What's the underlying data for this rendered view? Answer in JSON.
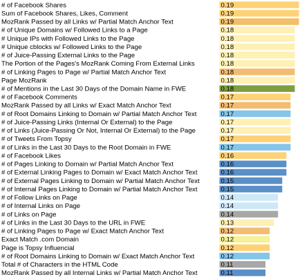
{
  "chart_data": {
    "type": "bar",
    "orientation": "horizontal",
    "title": "",
    "xlabel": "",
    "ylabel": "",
    "xlim": [
      0,
      0.19
    ],
    "grid": false,
    "legend": "none",
    "show_values": true,
    "value_decimals": 2,
    "categories": [
      "# of Facebook Shares",
      "Sum of Facebook Shares, Likes, Comment",
      "MozRank Passed by all Links w/ Partial Match Anchor Text",
      "# of Unique Domains w/ Followed Links to a Page",
      "# Unique IPs with Followed Links to the Page",
      "# Unique cblocks w/ Followed Links to the Page",
      "# of Juice-Passing External Links to the Page",
      "The Portion of the Pages's MozRank Coming From External Links",
      "# of Linking Pages to Page w/ Partial Match Anchor Text",
      "Page MozRank",
      "# of Mentions in the Last 30 Days of the Domain Name in FWE",
      "# of Facebook Comments",
      "MozRank Passed by all Links w/ Exact Match Anchor Text",
      "# of Root Domains Linking to Domain w/ Partial Match Anchor Text",
      "# of Juice-Passing Links (Internal Or External) to the Page",
      "# of Links (Juice-Passing Or Not, Internal Or External) to the Page",
      "# of Tweets From Topsy",
      "# of Links in the Last 30 Days to the Root Domain in FWE",
      "# of Facebook Likes",
      "# of Pages Linking to Domain w/ Partial Match Anchor Text",
      "# of External Linking Pages to Domain w/ Exact Match Anchor Text",
      "# of External Pages Linking to Domain w/ Partial Match Anchor Text",
      "# of Internal Pages Linking to Domain w/ Partial Match Anchor Text",
      "# of Follow Links on Page",
      "# of Internal Links on Page",
      "# of Links on Page",
      "# of Links in the Last 30 Days to the URL in FWE",
      "# of Linking Pages to Page w/ Exact Match Anchor Text",
      "Exact Match .com Domain",
      "Page is Topsy Influencial",
      "# of Root Domains Linking to Domain w/ Exact Match Anchor Text",
      "Total # of Characters in the HTML Code",
      "MozRank Passed by all Internal Links w/ Partial Match Anchor Text"
    ],
    "values": [
      0.19,
      0.19,
      0.19,
      0.18,
      0.18,
      0.18,
      0.18,
      0.18,
      0.18,
      0.18,
      0.18,
      0.17,
      0.17,
      0.17,
      0.17,
      0.17,
      0.17,
      0.17,
      0.16,
      0.16,
      0.16,
      0.15,
      0.15,
      0.14,
      0.14,
      0.14,
      0.13,
      0.12,
      0.12,
      0.12,
      0.12,
      0.11,
      0.11
    ],
    "colors": [
      "#fdd276",
      "#fdd276",
      "#f2be6a",
      "#fff0b3",
      "#fff0b3",
      "#fff0b3",
      "#fff0b3",
      "#fff0b3",
      "#f2bd72",
      "#fff0b3",
      "#7f9e3f",
      "#fdd276",
      "#f2bd72",
      "#84c5ea",
      "#fff0b3",
      "#fff0b3",
      "#fdd276",
      "#84c5ea",
      "#fdd276",
      "#5b8fc7",
      "#5b8fc7",
      "#5b8fc7",
      "#5b8fc7",
      "#cde8f7",
      "#cde8f7",
      "#a7a7a7",
      "#fff0b3",
      "#f2bd72",
      "#f4f19a",
      "#fdd276",
      "#84c5ea",
      "#a7a7a7",
      "#5b8fc7"
    ]
  }
}
